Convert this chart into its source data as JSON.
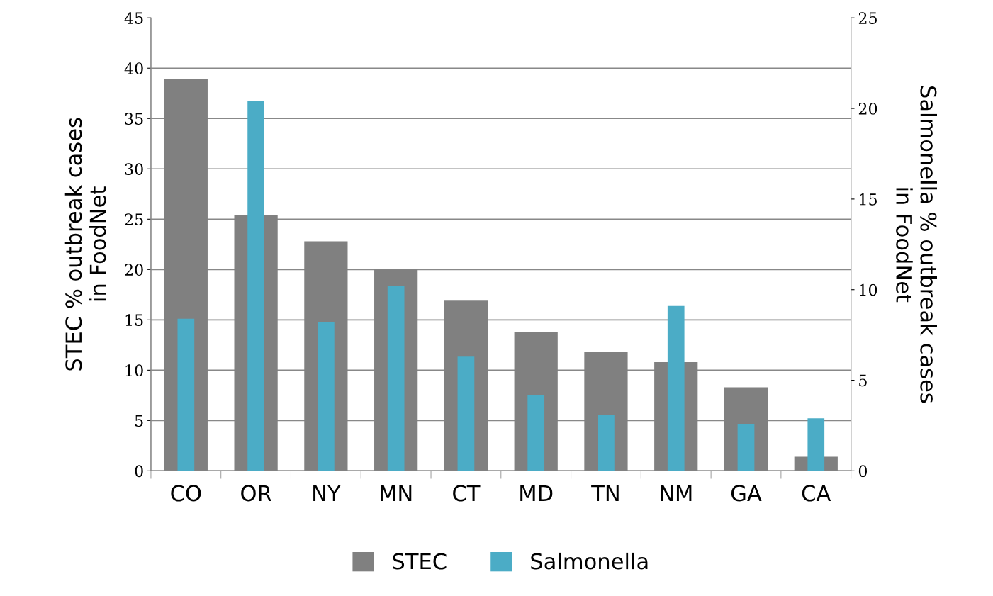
{
  "chart_data": {
    "type": "bar",
    "categories": [
      "CO",
      "OR",
      "NY",
      "MN",
      "CT",
      "MD",
      "TN",
      "NM",
      "GA",
      "CA"
    ],
    "ylabel": "STEC % outbreak cases\nin FoodNet",
    "y2label": "Salmonella % outbreak cases\nin FoodNet",
    "series": [
      {
        "name": "STEC",
        "color": "#808080",
        "values": [
          38.9,
          25.4,
          22.8,
          20.0,
          16.9,
          13.8,
          11.8,
          10.8,
          8.3,
          1.4
        ]
      },
      {
        "name": "Salmonella",
        "color": "#4bacc6",
        "axis": "y2",
        "values": [
          8.4,
          20.4,
          8.2,
          10.2,
          6.3,
          4.2,
          3.1,
          9.1,
          2.6,
          2.9
        ]
      }
    ],
    "ylim": [
      0,
      45
    ],
    "yticks": [
      0,
      5,
      10,
      15,
      20,
      25,
      30,
      35,
      40,
      45
    ],
    "y2lim": [
      0,
      25
    ],
    "y2ticks": [
      0,
      5,
      10,
      15,
      20,
      25
    ],
    "grid": "y",
    "legend": "bottom"
  }
}
